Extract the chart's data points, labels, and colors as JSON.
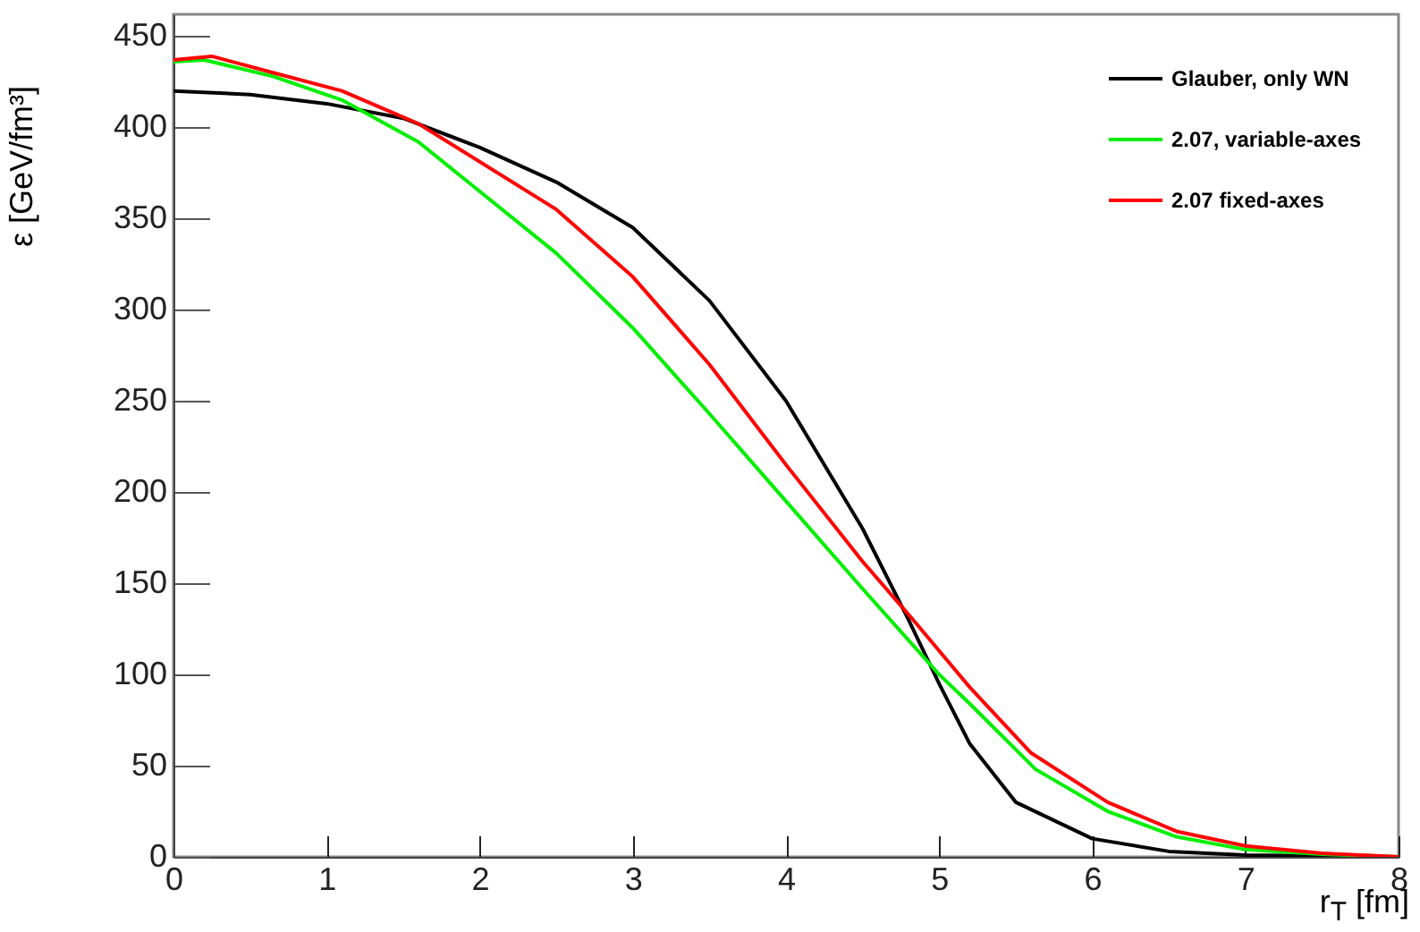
{
  "chart_data": {
    "type": "line",
    "xlabel": "r$_{T}$ [fm]",
    "ylabel": "ε [GeV/fm³]",
    "xlim": [
      0,
      8
    ],
    "ylim": [
      0,
      462
    ],
    "xticks": [
      0,
      1,
      2,
      3,
      4,
      5,
      6,
      7,
      8
    ],
    "yticks": [
      0,
      50,
      100,
      150,
      200,
      250,
      300,
      350,
      400,
      450
    ],
    "grid": false,
    "legend": "top right",
    "line_style": "solid",
    "series": [
      {
        "name": "Glauber, only WN",
        "color": "#000000",
        "x": [
          0,
          0.5,
          1,
          1.5,
          2,
          2.5,
          3,
          3.5,
          4,
          4.5,
          4.8,
          5,
          5.2,
          5.5,
          6,
          6.5,
          7,
          8
        ],
        "values": [
          420,
          418,
          413,
          405,
          389,
          370,
          345,
          305,
          250,
          180,
          130,
          95,
          62,
          30,
          10,
          3,
          1,
          0
        ]
      },
      {
        "name": "2.07, variable-axes",
        "color": "#00ee00",
        "x": [
          0,
          0.2,
          0.65,
          1.1,
          1.6,
          2.5,
          3,
          3.5,
          4,
          4.5,
          5,
          5.2,
          5.63,
          6.1,
          6.55,
          7,
          7.5,
          8
        ],
        "values": [
          436,
          437,
          428,
          415,
          392,
          331,
          290,
          243,
          195,
          147,
          100,
          84,
          48,
          25,
          11,
          4,
          1.5,
          0
        ]
      },
      {
        "name": "2.07 fixed-axes",
        "color": "#ff0000",
        "x": [
          0,
          0.25,
          0.65,
          1.1,
          1.6,
          2.5,
          3,
          3.5,
          4,
          4.5,
          4.85,
          5.2,
          5.6,
          6.1,
          6.55,
          7,
          7.5,
          8
        ],
        "values": [
          437,
          439,
          430,
          420,
          402,
          355,
          318,
          270,
          215,
          162,
          128,
          93,
          57,
          30,
          14,
          6,
          2,
          0
        ]
      }
    ]
  }
}
